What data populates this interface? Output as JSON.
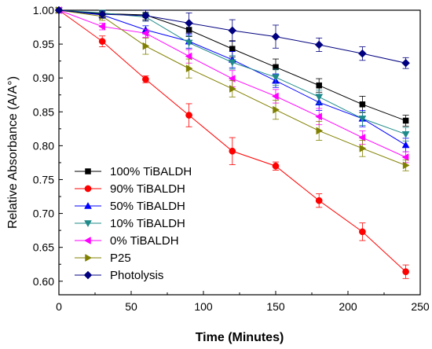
{
  "chart_data": {
    "type": "line",
    "xlabel": "Time (Minutes)",
    "ylabel": "Relative Absorbance (A/A°)",
    "xlim": [
      0,
      250
    ],
    "ylim": [
      0.58,
      1.0
    ],
    "xticks": [
      0,
      50,
      100,
      150,
      200,
      250
    ],
    "yticks": [
      0.6,
      0.65,
      0.7,
      0.75,
      0.8,
      0.85,
      0.9,
      0.95,
      1.0
    ],
    "xtick_labels": [
      "0",
      "50",
      "100",
      "150",
      "200",
      "250"
    ],
    "ytick_labels": [
      "0.60",
      "0.65",
      "0.70",
      "0.75",
      "0.80",
      "0.85",
      "0.90",
      "0.95",
      "1.00"
    ],
    "grid": false,
    "legend_position": "bottom-left",
    "x": [
      0,
      30,
      60,
      90,
      120,
      150,
      180,
      210,
      240
    ],
    "series": [
      {
        "name": "100% TiBALDH",
        "color": "#000000",
        "marker": "square",
        "values": [
          1.0,
          0.995,
          0.993,
          0.971,
          0.943,
          0.916,
          0.889,
          0.861,
          0.837
        ],
        "errors": [
          0,
          0.005,
          0.007,
          0.01,
          0.012,
          0.012,
          0.01,
          0.012,
          0.008
        ]
      },
      {
        "name": "90% TiBALDH",
        "color": "#ff0000",
        "marker": "circle",
        "values": [
          1.0,
          0.954,
          0.898,
          0.845,
          0.792,
          0.77,
          0.719,
          0.673,
          0.614
        ],
        "errors": [
          0,
          0.008,
          0.005,
          0.017,
          0.02,
          0.006,
          0.01,
          0.013,
          0.01
        ]
      },
      {
        "name": "50% TiBALDH",
        "color": "#0000ff",
        "marker": "triangle-up",
        "values": [
          1.0,
          0.993,
          0.971,
          0.954,
          0.927,
          0.896,
          0.864,
          0.84,
          0.801
        ],
        "errors": [
          0,
          0.005,
          0.006,
          0.01,
          0.012,
          0.01,
          0.012,
          0.012,
          0.01
        ]
      },
      {
        "name": "10% TiBALDH",
        "color": "#1f8a8a",
        "marker": "triangle-down",
        "values": [
          1.0,
          0.996,
          0.99,
          0.952,
          0.923,
          0.901,
          0.872,
          0.84,
          0.817
        ],
        "errors": [
          0,
          0.004,
          0.006,
          0.01,
          0.01,
          0.012,
          0.01,
          0.01,
          0.01
        ]
      },
      {
        "name": "0% TiBALDH",
        "color": "#ff00ff",
        "marker": "triangle-left",
        "values": [
          1.0,
          0.976,
          0.966,
          0.932,
          0.899,
          0.873,
          0.843,
          0.812,
          0.783
        ],
        "errors": [
          0,
          0.005,
          0.006,
          0.01,
          0.012,
          0.01,
          0.012,
          0.01,
          0.008
        ]
      },
      {
        "name": "P25",
        "color": "#808000",
        "marker": "triangle-right",
        "values": [
          1.0,
          0.991,
          0.947,
          0.914,
          0.884,
          0.853,
          0.822,
          0.796,
          0.771
        ],
        "errors": [
          0,
          0.006,
          0.012,
          0.014,
          0.012,
          0.014,
          0.014,
          0.012,
          0.008
        ]
      },
      {
        "name": "Photolysis",
        "color": "#000080",
        "marker": "diamond",
        "values": [
          1.0,
          0.994,
          0.992,
          0.981,
          0.97,
          0.961,
          0.949,
          0.936,
          0.922
        ],
        "errors": [
          0,
          0.005,
          0.008,
          0.015,
          0.016,
          0.017,
          0.01,
          0.01,
          0.008
        ]
      }
    ]
  }
}
